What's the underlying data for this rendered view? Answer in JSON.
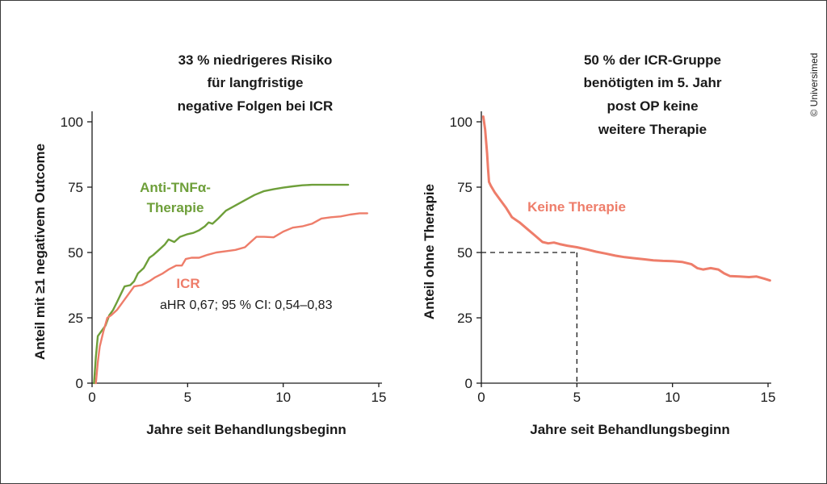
{
  "copyright": "© Universimed",
  "colors": {
    "green": "#6e9f3a",
    "salmon": "#ee7d6a",
    "axis": "#1a1a1a"
  },
  "chart_data": [
    {
      "type": "line",
      "title": [
        "33 % niedrigeres Risiko",
        "für langfristige",
        "negative Folgen bei ICR"
      ],
      "xlabel": "Jahre seit Behandlungsbeginn",
      "ylabel": "Anteil mit ≥1 negativem Outcome",
      "xlim": [
        0,
        15
      ],
      "ylim": [
        0,
        100
      ],
      "xticks": [
        0,
        5,
        10,
        15
      ],
      "yticks": [
        0,
        25,
        50,
        75,
        100
      ],
      "annotation": "aHR 0,67; 95 % CI: 0,54–0,83",
      "series": [
        {
          "name": [
            "Anti-TNFα-",
            "Therapie"
          ],
          "color": "#6e9f3a",
          "points": [
            [
              0.1,
              0
            ],
            [
              0.2,
              10
            ],
            [
              0.3,
              18
            ],
            [
              0.5,
              20
            ],
            [
              0.7,
              22
            ],
            [
              0.9,
              26
            ],
            [
              1.1,
              28
            ],
            [
              1.3,
              31
            ],
            [
              1.5,
              34
            ],
            [
              1.7,
              37
            ],
            [
              2,
              37.5
            ],
            [
              2.2,
              39
            ],
            [
              2.4,
              42
            ],
            [
              2.7,
              44
            ],
            [
              3,
              48
            ],
            [
              3.2,
              49
            ],
            [
              3.5,
              51
            ],
            [
              3.8,
              53
            ],
            [
              4,
              55
            ],
            [
              4.3,
              54
            ],
            [
              4.6,
              56
            ],
            [
              5,
              57
            ],
            [
              5.3,
              57.5
            ],
            [
              5.6,
              58.5
            ],
            [
              5.9,
              60
            ],
            [
              6.1,
              61.5
            ],
            [
              6.3,
              61
            ],
            [
              6.6,
              63
            ],
            [
              7,
              66
            ],
            [
              7.5,
              68
            ],
            [
              8,
              70
            ],
            [
              8.5,
              72
            ],
            [
              9,
              73.5
            ],
            [
              9.5,
              74.2
            ],
            [
              10,
              74.8
            ],
            [
              10.5,
              75.3
            ],
            [
              11,
              75.7
            ],
            [
              11.5,
              75.9
            ],
            [
              12,
              75.9
            ],
            [
              12.5,
              75.9
            ],
            [
              13,
              75.9
            ],
            [
              13.4,
              75.9
            ]
          ]
        },
        {
          "name": "ICR",
          "color": "#ee7d6a",
          "points": [
            [
              0.2,
              0
            ],
            [
              0.3,
              8
            ],
            [
              0.4,
              14
            ],
            [
              0.6,
              20
            ],
            [
              0.8,
              25
            ],
            [
              1,
              26
            ],
            [
              1.3,
              28
            ],
            [
              1.6,
              31
            ],
            [
              1.9,
              34
            ],
            [
              2.2,
              37
            ],
            [
              2.6,
              37.5
            ],
            [
              3,
              39
            ],
            [
              3.3,
              40.5
            ],
            [
              3.7,
              42
            ],
            [
              4,
              43.5
            ],
            [
              4.4,
              45
            ],
            [
              4.7,
              45
            ],
            [
              4.9,
              47.5
            ],
            [
              5.2,
              48
            ],
            [
              5.6,
              48
            ],
            [
              6,
              49
            ],
            [
              6.5,
              50
            ],
            [
              7,
              50.5
            ],
            [
              7.5,
              51
            ],
            [
              8,
              52
            ],
            [
              8.3,
              54
            ],
            [
              8.6,
              56
            ],
            [
              9,
              56
            ],
            [
              9.5,
              55.8
            ],
            [
              10,
              58
            ],
            [
              10.5,
              59.5
            ],
            [
              11,
              60
            ],
            [
              11.5,
              61
            ],
            [
              12,
              63
            ],
            [
              12.5,
              63.5
            ],
            [
              13,
              63.8
            ],
            [
              13.5,
              64.5
            ],
            [
              14,
              65
            ],
            [
              14.4,
              65
            ]
          ]
        }
      ]
    },
    {
      "type": "line",
      "title": [
        "50 % der ICR-Gruppe",
        "benötigten im 5. Jahr",
        "post OP keine",
        "weitere Therapie"
      ],
      "xlabel": "Jahre seit Behandlungsbeginn",
      "ylabel": "Anteil ohne Therapie",
      "xlim": [
        0,
        15
      ],
      "ylim": [
        0,
        100
      ],
      "xticks": [
        0,
        5,
        10,
        15
      ],
      "yticks": [
        0,
        25,
        50,
        75,
        100
      ],
      "reference": {
        "x": 5,
        "y": 50
      },
      "series": [
        {
          "name": "Keine Therapie",
          "color": "#ee7d6a",
          "points": [
            [
              0.1,
              102
            ],
            [
              0.2,
              97
            ],
            [
              0.3,
              88
            ],
            [
              0.35,
              82
            ],
            [
              0.4,
              77
            ],
            [
              0.5,
              75.5
            ],
            [
              0.7,
              73
            ],
            [
              1,
              70
            ],
            [
              1.3,
              67
            ],
            [
              1.6,
              63.5
            ],
            [
              2,
              61.5
            ],
            [
              2.4,
              59
            ],
            [
              2.8,
              56.5
            ],
            [
              3.2,
              54
            ],
            [
              3.5,
              53.5
            ],
            [
              3.8,
              53.8
            ],
            [
              4.1,
              53.2
            ],
            [
              4.5,
              52.6
            ],
            [
              5,
              52
            ],
            [
              5.5,
              51.2
            ],
            [
              6,
              50.3
            ],
            [
              6.5,
              49.6
            ],
            [
              7,
              48.8
            ],
            [
              7.5,
              48.2
            ],
            [
              8,
              47.8
            ],
            [
              8.5,
              47.4
            ],
            [
              9,
              47
            ],
            [
              9.5,
              46.8
            ],
            [
              10,
              46.7
            ],
            [
              10.5,
              46.4
            ],
            [
              11,
              45.5
            ],
            [
              11.3,
              44
            ],
            [
              11.6,
              43.5
            ],
            [
              12,
              44
            ],
            [
              12.4,
              43.5
            ],
            [
              12.7,
              42
            ],
            [
              13,
              41
            ],
            [
              13.5,
              40.8
            ],
            [
              14,
              40.6
            ],
            [
              14.4,
              40.8
            ],
            [
              14.8,
              40
            ],
            [
              15.1,
              39.3
            ]
          ]
        }
      ]
    }
  ]
}
